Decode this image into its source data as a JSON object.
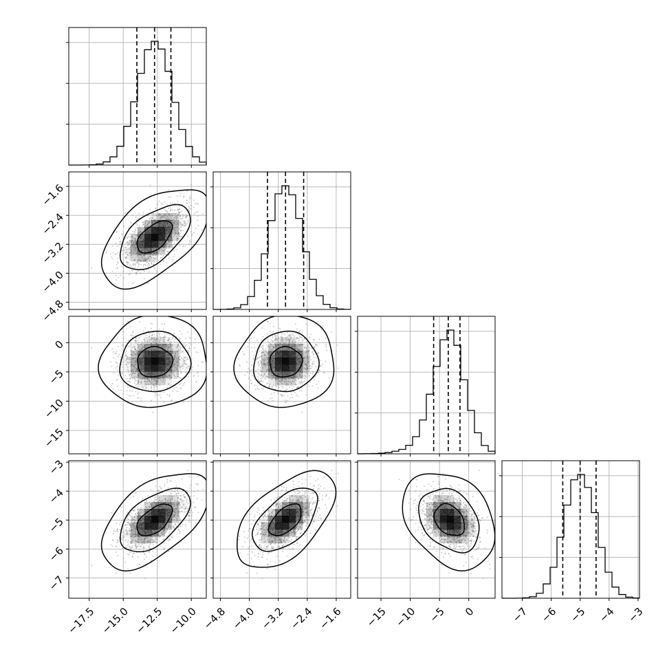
{
  "colors": {
    "line": "#000000",
    "grid": "#b0b0b0",
    "scatter": "#7a7a7a",
    "density": "#000000"
  },
  "chart_data": {
    "type": "corner",
    "title": "",
    "grid": true,
    "parameters": [
      {
        "index": 0,
        "mean": -12.7,
        "sd": 1.3,
        "range": [
          -19.0,
          -8.9
        ],
        "ticks": [
          -17.5,
          -15.0,
          -12.5,
          -10.0
        ],
        "tick_labels": [
          "−17.5",
          "−15.0",
          "−12.5",
          "−10.0"
        ],
        "quantiles": [
          -14.0,
          -12.7,
          -11.5
        ]
      },
      {
        "index": 1,
        "mean": -3.0,
        "sd": 0.45,
        "range": [
          -5.0,
          -1.2
        ],
        "ticks": [
          -4.8,
          -4.0,
          -3.2,
          -2.4,
          -1.6
        ],
        "tick_labels": [
          "−4.8",
          "−4.0",
          "−3.2",
          "−2.4",
          "−1.6"
        ],
        "quantiles": [
          -3.5,
          -3.0,
          -2.5
        ]
      },
      {
        "index": 2,
        "mean": -3.3,
        "sd": 2.6,
        "range": [
          -19.0,
          4.5
        ],
        "ticks": [
          -15,
          -10,
          -5,
          0
        ],
        "tick_labels": [
          "−15",
          "−10",
          "−5",
          "0"
        ],
        "quantiles": [
          -6.0,
          -3.5,
          -1.5
        ]
      },
      {
        "index": 3,
        "mean": -5.0,
        "sd": 0.55,
        "range": [
          -7.7,
          -2.95
        ],
        "ticks": [
          -7,
          -6,
          -5,
          -4,
          -3
        ],
        "tick_labels": [
          "−7",
          "−6",
          "−5",
          "−4",
          "−3"
        ],
        "quantiles": [
          -5.6,
          -5.0,
          -4.45
        ]
      }
    ],
    "correlations": [
      {
        "pair": [
          0,
          1
        ],
        "rho": 0.55
      },
      {
        "pair": [
          0,
          2
        ],
        "rho": 0.05
      },
      {
        "pair": [
          1,
          2
        ],
        "rho": 0.05
      },
      {
        "pair": [
          0,
          3
        ],
        "rho": 0.55
      },
      {
        "pair": [
          1,
          3
        ],
        "rho": 0.55
      },
      {
        "pair": [
          2,
          3
        ],
        "rho": -0.3
      }
    ],
    "histogram": {
      "bins": 20,
      "style": "step"
    },
    "contour_levels": [
      0.39,
      0.86,
      0.99
    ],
    "n_samples_shown": 1200
  }
}
